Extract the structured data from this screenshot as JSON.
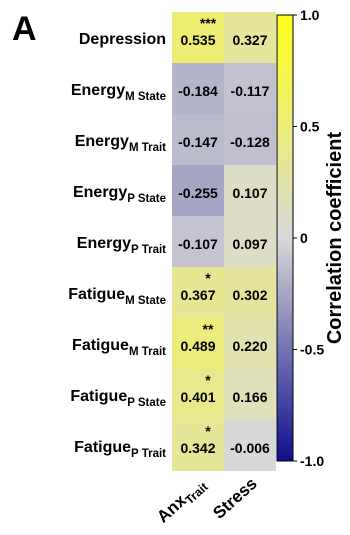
{
  "panel_label": "A",
  "chart_data": {
    "type": "heatmap",
    "rows": [
      {
        "label": "Depression",
        "sub": ""
      },
      {
        "label": "Energy",
        "sub": "M State"
      },
      {
        "label": "Energy",
        "sub": "M Trait"
      },
      {
        "label": "Energy",
        "sub": "P State"
      },
      {
        "label": "Energy",
        "sub": "P Trait"
      },
      {
        "label": "Fatigue",
        "sub": "M State"
      },
      {
        "label": "Fatigue",
        "sub": "M Trait"
      },
      {
        "label": "Fatigue",
        "sub": "P State"
      },
      {
        "label": "Fatigue",
        "sub": "P Trait"
      }
    ],
    "columns": [
      {
        "label": "Anx",
        "sub": "Trait"
      },
      {
        "label": "Stress",
        "sub": ""
      }
    ],
    "values": [
      [
        0.535,
        0.327
      ],
      [
        -0.184,
        -0.117
      ],
      [
        -0.147,
        -0.128
      ],
      [
        -0.255,
        0.107
      ],
      [
        -0.107,
        0.097
      ],
      [
        0.367,
        0.302
      ],
      [
        0.489,
        0.22
      ],
      [
        0.401,
        0.166
      ],
      [
        0.342,
        -0.006
      ]
    ],
    "cell_labels": [
      [
        "0.535",
        "0.327"
      ],
      [
        "-0.184",
        "-0.117"
      ],
      [
        "-0.147",
        "-0.128"
      ],
      [
        "-0.255",
        "0.107"
      ],
      [
        "-0.107",
        "0.097"
      ],
      [
        "0.367",
        "0.302"
      ],
      [
        "0.489",
        "0.220"
      ],
      [
        "0.401",
        "0.166"
      ],
      [
        "0.342",
        "-0.006"
      ]
    ],
    "significance": [
      [
        "***",
        ""
      ],
      [
        "",
        ""
      ],
      [
        "",
        ""
      ],
      [
        "",
        ""
      ],
      [
        "",
        ""
      ],
      [
        "*",
        ""
      ],
      [
        "**",
        ""
      ],
      [
        "*",
        ""
      ],
      [
        "*",
        ""
      ]
    ],
    "colorbar": {
      "label": "Correlation coefficient",
      "range": [
        -1.0,
        1.0
      ],
      "ticks": [
        1.0,
        0.5,
        0,
        -0.5,
        -1.0
      ],
      "tick_labels": [
        "1.0",
        "0.5",
        "0",
        "-0.5",
        "-1.0"
      ],
      "colors": {
        "low": "#0f0f8c",
        "mid": "#d9d9d9",
        "high": "#ffff1a"
      }
    }
  }
}
